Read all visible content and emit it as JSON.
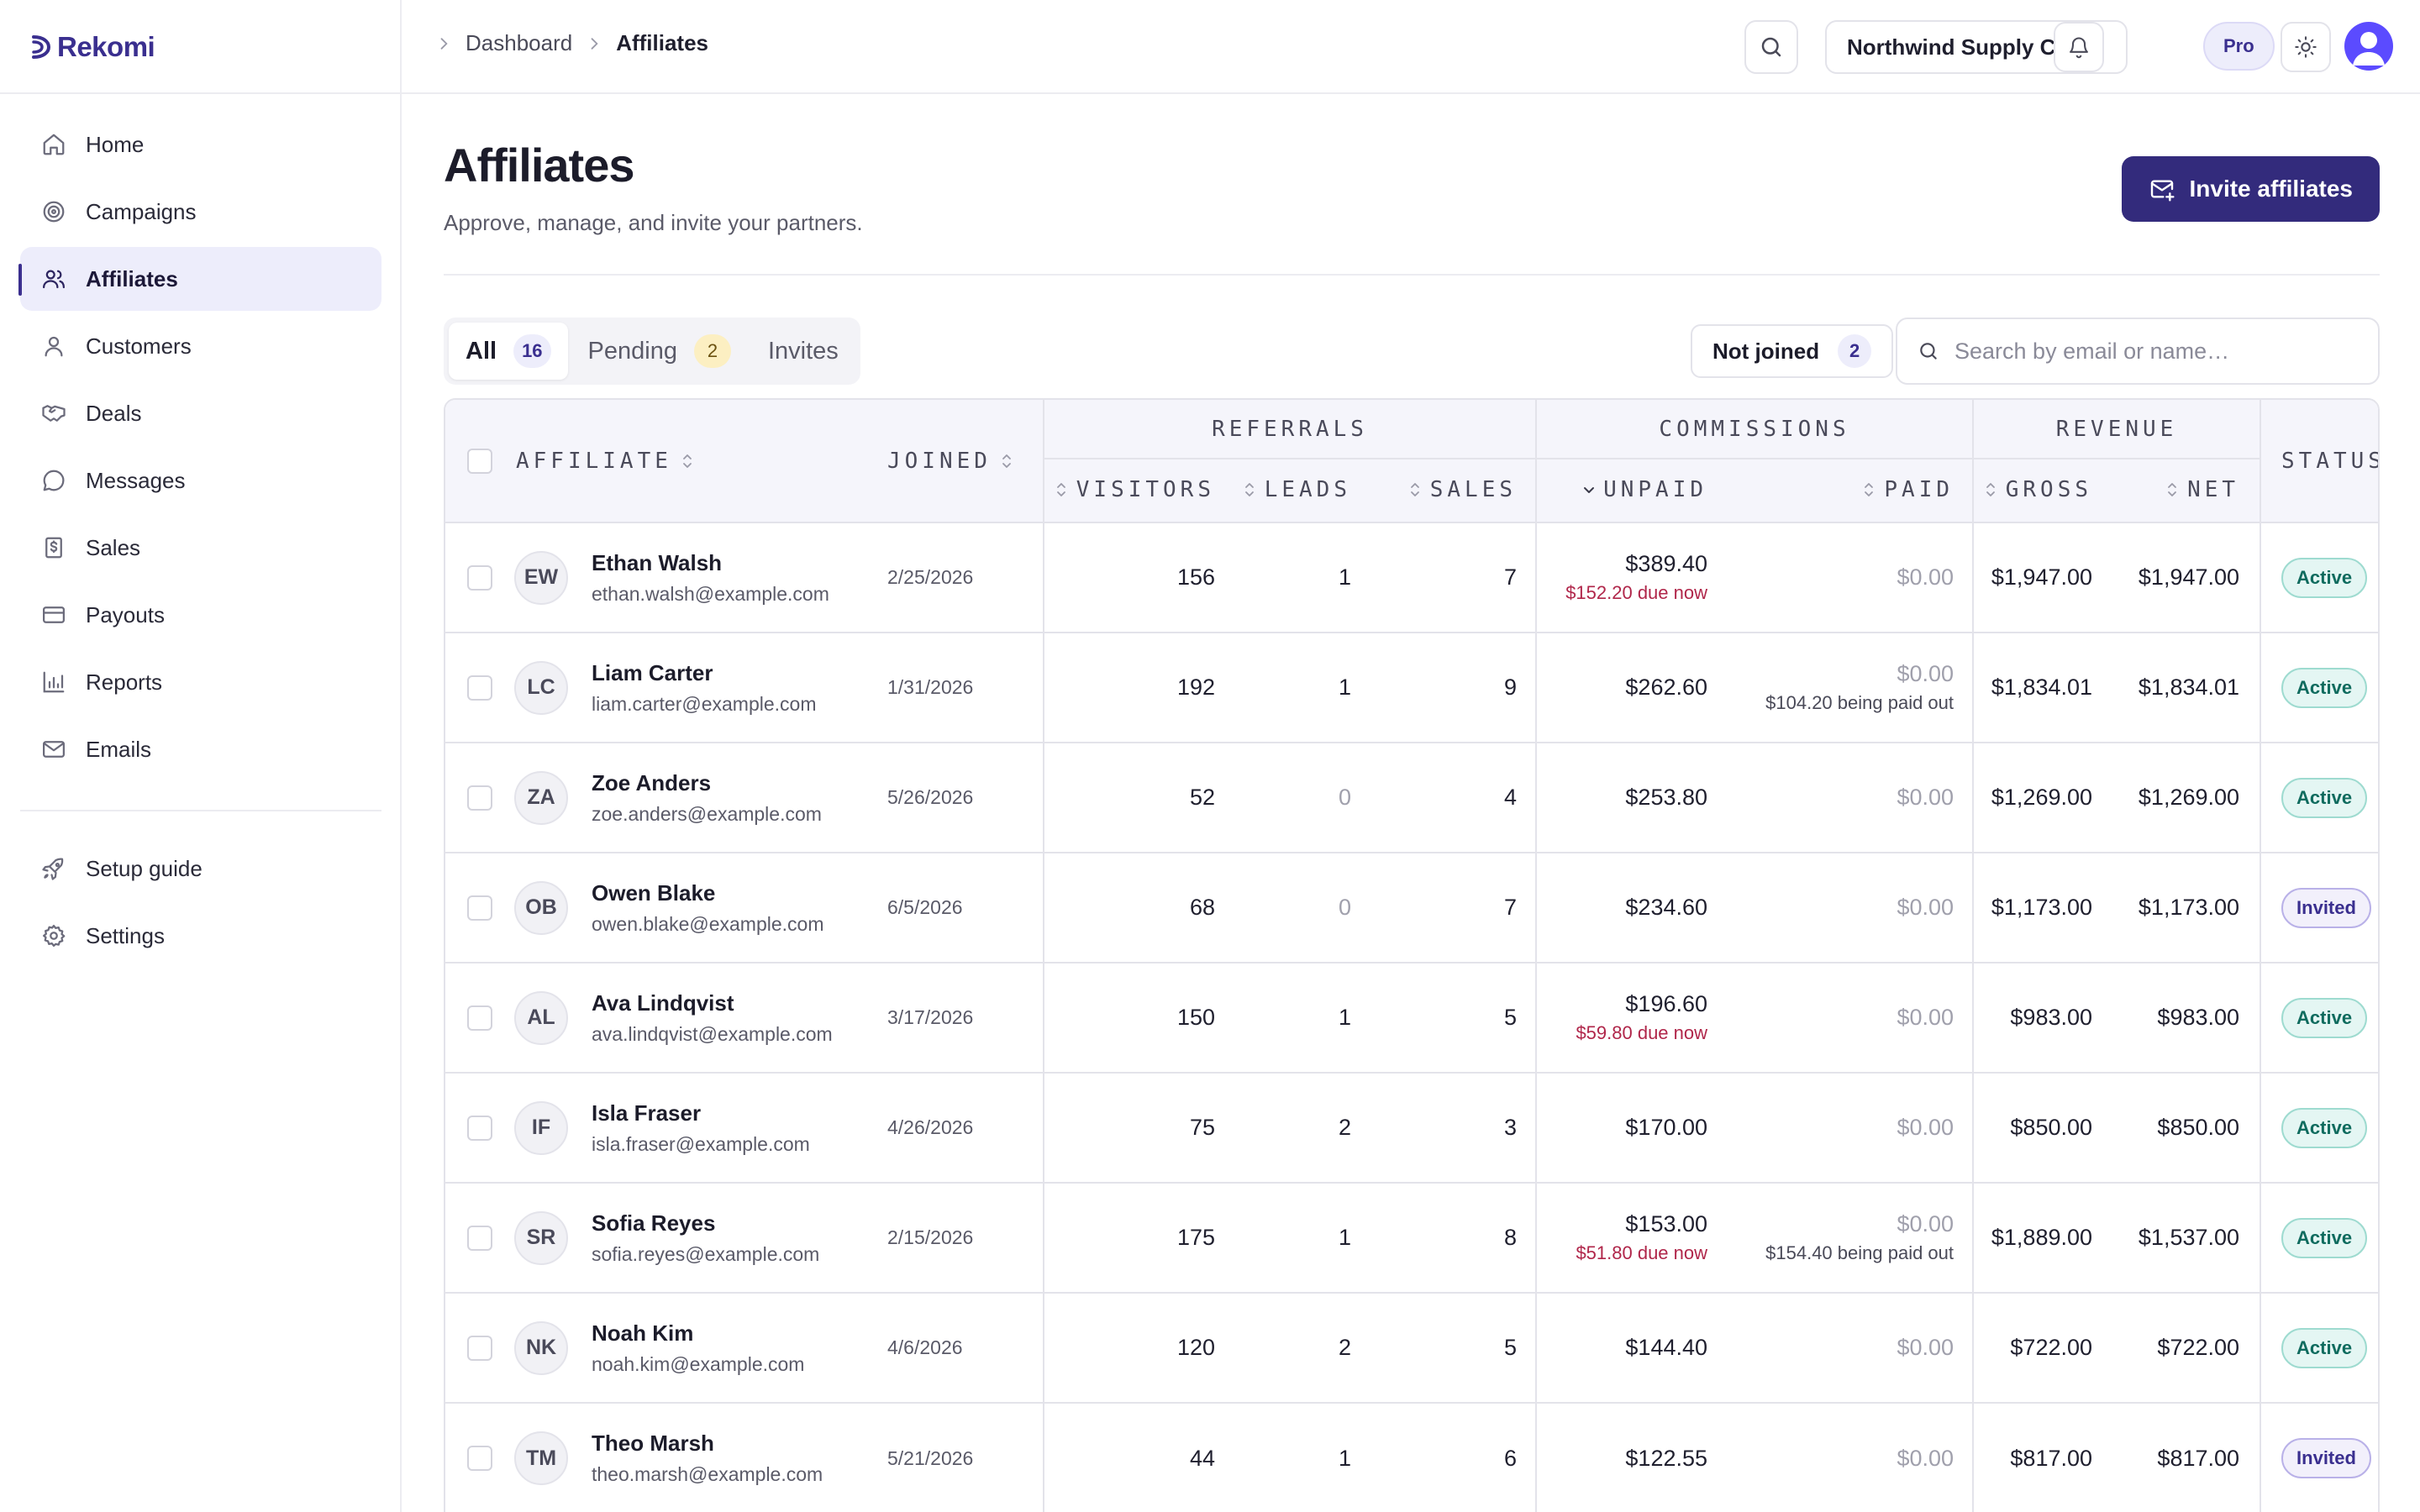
{
  "app": {
    "name": "Rekomi"
  },
  "sidebar": {
    "items": [
      {
        "label": "Home",
        "icon": "home-icon",
        "active": false
      },
      {
        "label": "Campaigns",
        "icon": "target-icon",
        "active": false
      },
      {
        "label": "Affiliates",
        "icon": "users-icon",
        "active": true
      },
      {
        "label": "Customers",
        "icon": "user-icon",
        "active": false
      },
      {
        "label": "Deals",
        "icon": "handshake-icon",
        "active": false
      },
      {
        "label": "Messages",
        "icon": "message-icon",
        "active": false
      },
      {
        "label": "Sales",
        "icon": "receipt-icon",
        "active": false
      },
      {
        "label": "Payouts",
        "icon": "credit-card-icon",
        "active": false
      },
      {
        "label": "Reports",
        "icon": "bar-chart-icon",
        "active": false
      },
      {
        "label": "Emails",
        "icon": "mail-icon",
        "active": false
      }
    ],
    "bottom_items": [
      {
        "label": "Setup guide",
        "icon": "rocket-icon"
      },
      {
        "label": "Settings",
        "icon": "gear-icon"
      }
    ]
  },
  "header": {
    "breadcrumb": [
      "Dashboard",
      "Affiliates"
    ],
    "org_name": "Northwind Supply Co.",
    "plan_badge": "Pro"
  },
  "page": {
    "title": "Affiliates",
    "subtitle": "Approve, manage, and invite your partners.",
    "invite_button": "Invite affiliates"
  },
  "filters": {
    "tabs": [
      {
        "label": "All",
        "count": "16",
        "active": true
      },
      {
        "label": "Pending",
        "count": "2",
        "active": false
      },
      {
        "label": "Invites",
        "count": null,
        "active": false
      }
    ],
    "not_joined_label": "Not joined",
    "not_joined_count": "2",
    "search_placeholder": "Search by email or name…"
  },
  "table": {
    "groups": {
      "referrals": "Referrals",
      "commissions": "Commissions",
      "revenue": "Revenue"
    },
    "columns": {
      "affiliate": "Affiliate",
      "joined": "Joined",
      "visitors": "Visitors",
      "leads": "Leads",
      "sales": "Sales",
      "unpaid": "Unpaid",
      "paid": "Paid",
      "gross": "Gross",
      "net": "Net",
      "status": "Status"
    },
    "rows": [
      {
        "initials": "EW",
        "name": "Ethan Walsh",
        "email": "ethan.walsh@example.com",
        "joined": "2/25/2026",
        "visitors": "156",
        "leads": "1",
        "sales": "7",
        "unpaid": "$389.40",
        "unpaid_note": "$152.20 due now",
        "paid": "$0.00",
        "paid_note": "",
        "gross": "$1,947.00",
        "net": "$1,947.00",
        "status": "Active"
      },
      {
        "initials": "LC",
        "name": "Liam Carter",
        "email": "liam.carter@example.com",
        "joined": "1/31/2026",
        "visitors": "192",
        "leads": "1",
        "sales": "9",
        "unpaid": "$262.60",
        "unpaid_note": "",
        "paid": "$0.00",
        "paid_note": "$104.20 being paid out",
        "gross": "$1,834.01",
        "net": "$1,834.01",
        "status": "Active"
      },
      {
        "initials": "ZA",
        "name": "Zoe Anders",
        "email": "zoe.anders@example.com",
        "joined": "5/26/2026",
        "visitors": "52",
        "leads": "0",
        "sales": "4",
        "unpaid": "$253.80",
        "unpaid_note": "",
        "paid": "$0.00",
        "paid_note": "",
        "gross": "$1,269.00",
        "net": "$1,269.00",
        "status": "Active"
      },
      {
        "initials": "OB",
        "name": "Owen Blake",
        "email": "owen.blake@example.com",
        "joined": "6/5/2026",
        "visitors": "68",
        "leads": "0",
        "sales": "7",
        "unpaid": "$234.60",
        "unpaid_note": "",
        "paid": "$0.00",
        "paid_note": "",
        "gross": "$1,173.00",
        "net": "$1,173.00",
        "status": "Invited"
      },
      {
        "initials": "AL",
        "name": "Ava Lindqvist",
        "email": "ava.lindqvist@example.com",
        "joined": "3/17/2026",
        "visitors": "150",
        "leads": "1",
        "sales": "5",
        "unpaid": "$196.60",
        "unpaid_note": "$59.80 due now",
        "paid": "$0.00",
        "paid_note": "",
        "gross": "$983.00",
        "net": "$983.00",
        "status": "Active"
      },
      {
        "initials": "IF",
        "name": "Isla Fraser",
        "email": "isla.fraser@example.com",
        "joined": "4/26/2026",
        "visitors": "75",
        "leads": "2",
        "sales": "3",
        "unpaid": "$170.00",
        "unpaid_note": "",
        "paid": "$0.00",
        "paid_note": "",
        "gross": "$850.00",
        "net": "$850.00",
        "status": "Active"
      },
      {
        "initials": "SR",
        "name": "Sofia Reyes",
        "email": "sofia.reyes@example.com",
        "joined": "2/15/2026",
        "visitors": "175",
        "leads": "1",
        "sales": "8",
        "unpaid": "$153.00",
        "unpaid_note": "$51.80 due now",
        "paid": "$0.00",
        "paid_note": "$154.40 being paid out",
        "gross": "$1,889.00",
        "net": "$1,537.00",
        "status": "Active"
      },
      {
        "initials": "NK",
        "name": "Noah Kim",
        "email": "noah.kim@example.com",
        "joined": "4/6/2026",
        "visitors": "120",
        "leads": "2",
        "sales": "5",
        "unpaid": "$144.40",
        "unpaid_note": "",
        "paid": "$0.00",
        "paid_note": "",
        "gross": "$722.00",
        "net": "$722.00",
        "status": "Active"
      },
      {
        "initials": "TM",
        "name": "Theo Marsh",
        "email": "theo.marsh@example.com",
        "joined": "5/21/2026",
        "visitors": "44",
        "leads": "1",
        "sales": "6",
        "unpaid": "$122.55",
        "unpaid_note": "",
        "paid": "$0.00",
        "paid_note": "",
        "gross": "$817.00",
        "net": "$817.00",
        "status": "Invited"
      }
    ]
  },
  "colors": {
    "brand": "#332b7c",
    "accent_soft": "#ededfb",
    "due_red": "#b0264a",
    "active_green": "#0f6b5e"
  }
}
